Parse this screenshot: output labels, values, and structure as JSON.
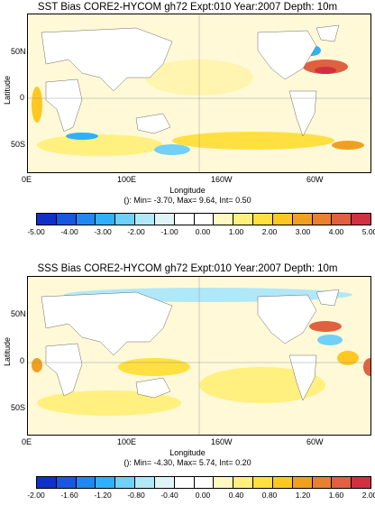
{
  "panels": [
    {
      "title": "SST Bias CORE2-HYCOM gh72 Expt:010 Year:2007 Depth:  10m",
      "ylabel": "Latitude",
      "xlabel": "Longitude",
      "stats": "(): Min= -3.70, Max= 9.64, Int= 0.50",
      "y_ticks": [
        "50N",
        "0",
        "50S"
      ],
      "x_ticks": [
        "0E",
        "100E",
        "160W",
        "60W"
      ],
      "colorbar_labels": [
        "-5.00",
        "-4.00",
        "-3.00",
        "-2.00",
        "-1.00",
        "0.00",
        "1.00",
        "2.00",
        "3.00",
        "4.00",
        "5.00"
      ]
    },
    {
      "title": "SSS Bias CORE2-HYCOM gh72 Expt:010 Year:2007 Depth:  10m",
      "ylabel": "Latitude",
      "xlabel": "Longitude",
      "stats": "(): Min= -4.30, Max= 5.74, Int= 0.20",
      "y_ticks": [
        "50N",
        "0",
        "50S"
      ],
      "x_ticks": [
        "0E",
        "100E",
        "160W",
        "60W"
      ],
      "colorbar_labels": [
        "-2.00",
        "-1.60",
        "-1.20",
        "-0.80",
        "-0.40",
        "0.00",
        "0.40",
        "0.80",
        "1.20",
        "1.60",
        "2.00"
      ]
    }
  ],
  "colorbar_colors": [
    "#1030c8",
    "#1858e0",
    "#2088f0",
    "#30b0f8",
    "#70d0f8",
    "#b0e8f8",
    "#e0f4f8",
    "#ffffff",
    "#ffffff",
    "#fff8c0",
    "#fff080",
    "#ffe040",
    "#ffc820",
    "#f0a020",
    "#e88030",
    "#e06040",
    "#d03040"
  ]
}
